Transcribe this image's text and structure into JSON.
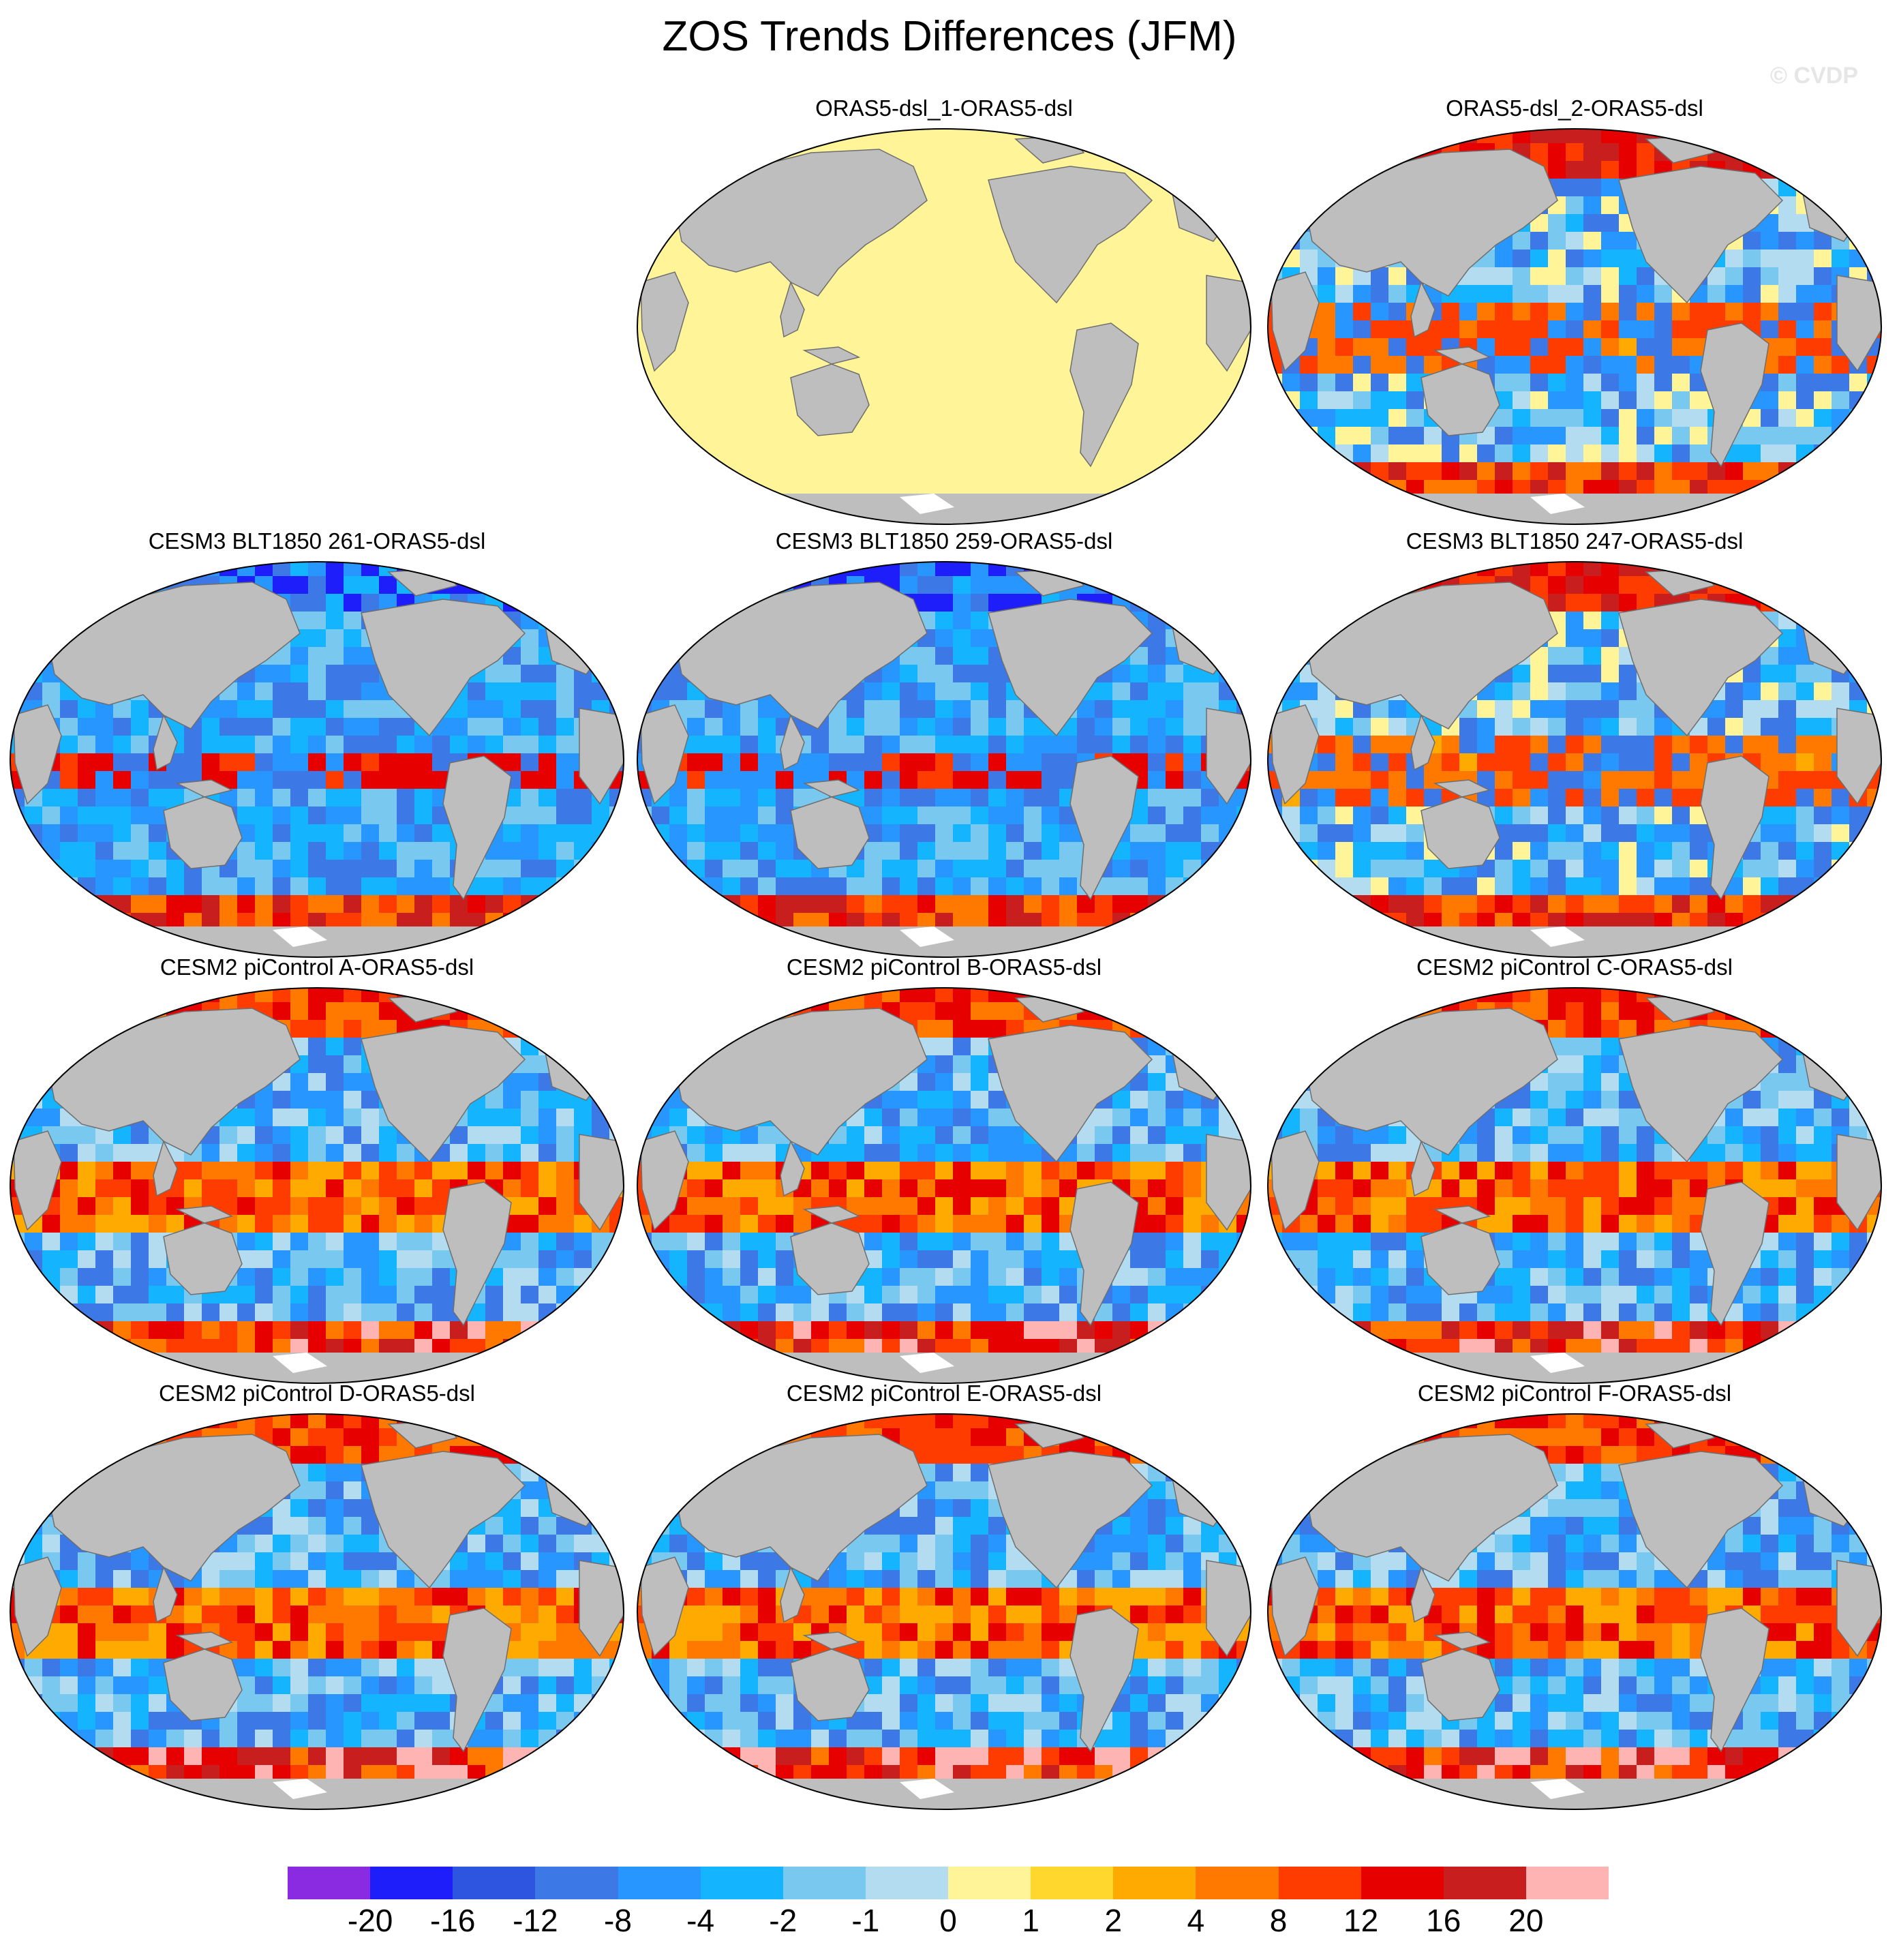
{
  "figure": {
    "title": "ZOS Trends Differences (JFM)",
    "watermark": "© CVDP"
  },
  "panels": [
    {
      "title": "ORAS5-dsl_1-ORAS5-dsl",
      "field": "uniform"
    },
    {
      "title": "ORAS5-dsl_2-ORAS5-dsl",
      "field": "mixed"
    },
    {
      "title": "CESM3 BLT1850 261-ORAS5-dsl",
      "field": "cool"
    },
    {
      "title": "CESM3 BLT1850 259-ORAS5-dsl",
      "field": "cool"
    },
    {
      "title": "CESM3 BLT1850 247-ORAS5-dsl",
      "field": "mixed"
    },
    {
      "title": "CESM2 piControl A-ORAS5-dsl",
      "field": "warm"
    },
    {
      "title": "CESM2 piControl B-ORAS5-dsl",
      "field": "warm"
    },
    {
      "title": "CESM2 piControl C-ORAS5-dsl",
      "field": "warm"
    },
    {
      "title": "CESM2 piControl D-ORAS5-dsl",
      "field": "warm"
    },
    {
      "title": "CESM2 piControl E-ORAS5-dsl",
      "field": "warm"
    },
    {
      "title": "CESM2 piControl F-ORAS5-dsl",
      "field": "warm"
    }
  ],
  "colorbar": {
    "colors": [
      "#8a2be2",
      "#1e1efa",
      "#2e55e0",
      "#3c78e6",
      "#2896ff",
      "#14b4ff",
      "#78c8f0",
      "#b4dcf0",
      "#fff598",
      "#ffd72d",
      "#ffaa00",
      "#ff7800",
      "#ff3c00",
      "#e60000",
      "#c81e1e",
      "#ffb4b4"
    ],
    "labels": [
      "-20",
      "-16",
      "-12",
      "-8",
      "-4",
      "-2",
      "-1",
      "0",
      "1",
      "2",
      "4",
      "8",
      "12",
      "16",
      "20"
    ]
  },
  "colors": {
    "land": "#bebebe",
    "uniform_ocean": "#fff598",
    "antarctic_ice": "#ffffff"
  }
}
